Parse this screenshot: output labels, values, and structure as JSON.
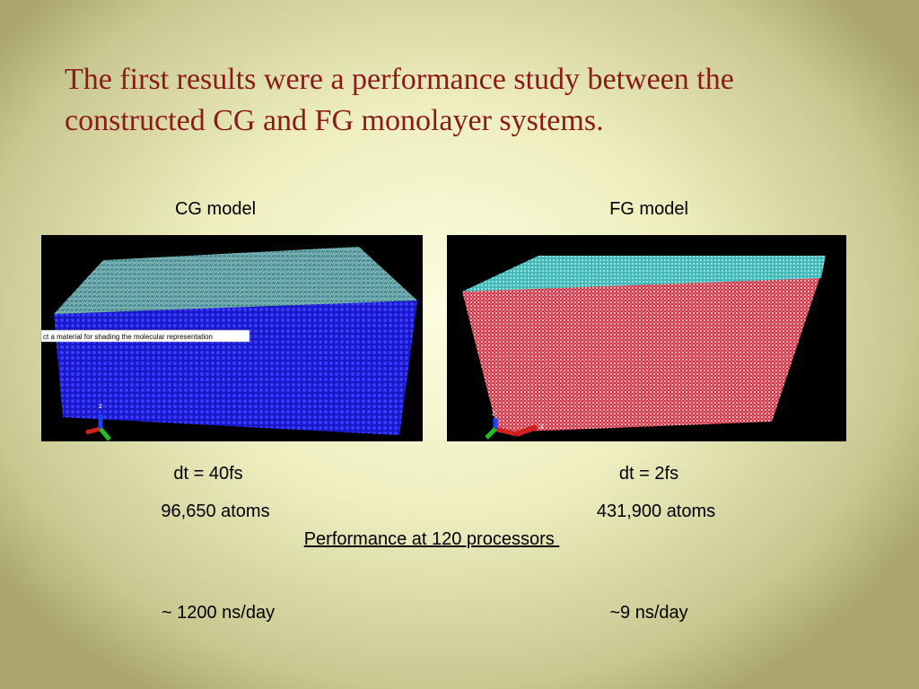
{
  "title_lines": [
    "The first results were a performance study between the",
    "constructed CG and FG monolayer systems."
  ],
  "panels": [
    {
      "label": "CG model",
      "tooltip": "ct a material for shading the molecular representation",
      "axis_labels": [
        "z"
      ],
      "dt": "dt = 40fs",
      "atoms": "96,650 atoms",
      "performance": "~ 1200 ns/day"
    },
    {
      "label": "FG model",
      "axis_labels": [
        "z",
        "x"
      ],
      "dt": "dt = 2fs",
      "atoms": "431,900 atoms",
      "performance": "~9 ns/day"
    }
  ],
  "performance_heading": "Performance at 120 processors "
}
